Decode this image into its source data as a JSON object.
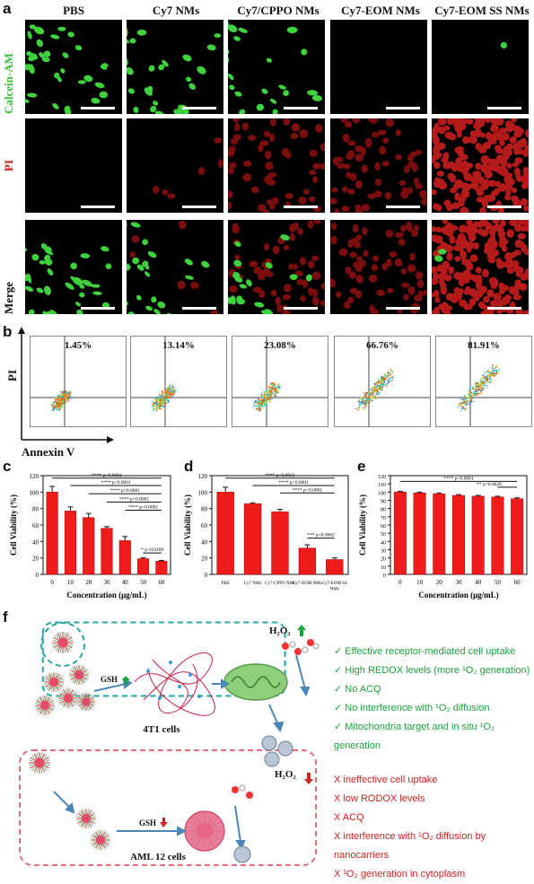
{
  "panels": {
    "a": "a",
    "b": "b",
    "c": "c",
    "d": "d",
    "e": "e",
    "f": "f"
  },
  "a": {
    "columns": [
      "PBS",
      "Cy7 NMs",
      "Cy7/CPPO NMs",
      "Cy7-EOM NMs",
      "Cy7-EOM SS NMs"
    ],
    "rows": [
      {
        "label": "Calcein-AM",
        "color": "#39c239"
      },
      {
        "label": "PI",
        "color": "#d01818"
      },
      {
        "label": "Merge",
        "color": "#111111"
      }
    ]
  },
  "b": {
    "percentages": [
      "1.45%",
      "13.14%",
      "23.08%",
      "66.76%",
      "81.91%"
    ],
    "ylabel": "PI",
    "xlabel": "Annexin V"
  },
  "chart_data": [
    {
      "type": "bar",
      "categories": [
        "0",
        "10",
        "20",
        "30",
        "40",
        "50",
        "60"
      ],
      "values": [
        100,
        77,
        69,
        56,
        41,
        19,
        16
      ],
      "errors": [
        7,
        5,
        5,
        2,
        5,
        1,
        1
      ],
      "xlabel": "Concentration (μg/mL)",
      "ylabel": "Cell Viability (%)",
      "ylim": [
        0,
        120
      ],
      "yticks": [
        "0",
        "20",
        "40",
        "60",
        "80",
        "100",
        "120"
      ],
      "annotations": [
        "**** p<0.0001",
        "**** p<0.0001",
        "**** p<0.0001",
        "**** p<0.0001",
        "**** p<0.0001",
        "* p<0.0189"
      ]
    },
    {
      "type": "bar",
      "categories": [
        "PBS",
        "Cy7 NMs",
        "Cy7-CPPO NMs",
        "Cy7-EOM NMs",
        "Cy7-EOM SS NMs"
      ],
      "values": [
        100,
        86,
        76,
        32,
        18
      ],
      "errors": [
        6,
        1,
        3,
        4,
        2
      ],
      "xlabel": "",
      "ylabel": "Cell Viability (%)",
      "ylim": [
        0,
        120
      ],
      "yticks": [
        "0",
        "20",
        "40",
        "60",
        "80",
        "100",
        "120"
      ],
      "annotations": [
        "**** p<0.0001",
        "**** p<0.0001",
        "**** p<0.0001",
        "*** p<0.0002"
      ]
    },
    {
      "type": "bar",
      "categories": [
        "0",
        "10",
        "20",
        "30",
        "40",
        "50",
        "60"
      ],
      "values": [
        100,
        99,
        98,
        96,
        95,
        94,
        92
      ],
      "errors": [
        1,
        1,
        1,
        1,
        1,
        1,
        1
      ],
      "xlabel": "Concentration (μg/mL)",
      "ylabel": "Cell Viability (%)",
      "ylim": [
        0,
        120
      ],
      "yticks": [
        "0",
        "10",
        "20",
        "30",
        "40",
        "50",
        "60",
        "70",
        "80",
        "90",
        "100",
        "110",
        "120"
      ],
      "annotations": [
        "**** p<0.0001",
        "** p=0.0028"
      ]
    }
  ],
  "f": {
    "top_label": "4T1 cells",
    "bottom_label": "AML 12 cells",
    "gsh": "GSH",
    "h2o2": "H₂O₂",
    "top_items": [
      "✓ Effective receptor-mediated cell uptake",
      "✓ High REDOX levels (more ¹O₂ generation)",
      "✓ No ACQ",
      "✓ No interference with ¹O₂ diffusion",
      "✓ Mitochondria target and in situ ¹O₂ generation"
    ],
    "bottom_items": [
      "X  ineffective cell uptake",
      "X  low RODOX levels",
      "X  ACQ",
      "X  interference with ¹O₂ diffusion by nanocarriers",
      "X  ¹O₂  generation in cytoplasm"
    ],
    "colors": {
      "good": "#1aa33a",
      "bad": "#d42020",
      "teal": "#2aa7a7",
      "pink": "#e0707a"
    }
  }
}
